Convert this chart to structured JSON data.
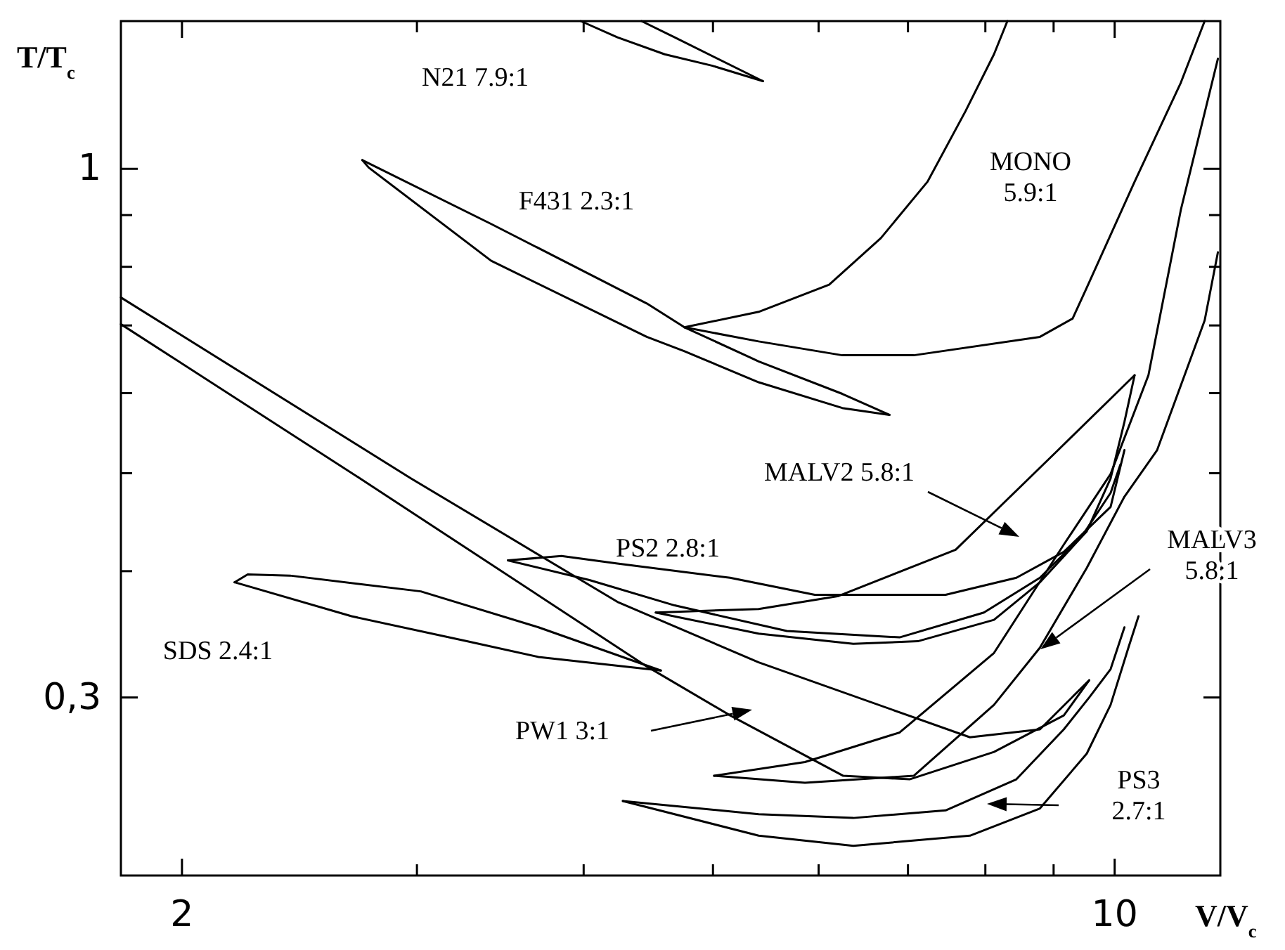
{
  "chart_data": {
    "type": "line",
    "xlabel": "V/V$_{c}$",
    "ylabel": "T/T$_{c}$",
    "log": "xy",
    "xlim": [
      1.8,
      12
    ],
    "ylim": [
      0.2,
      1.4
    ],
    "xticks": [
      2,
      {
        "value": 3,
        "label": null
      },
      {
        "value": 4,
        "label": null
      },
      {
        "value": 5,
        "label": null
      },
      {
        "value": 6,
        "label": null
      },
      {
        "value": 7,
        "label": null
      },
      {
        "value": 8,
        "label": null
      },
      {
        "value": 9,
        "label": null
      },
      10
    ],
    "yticks": [
      {
        "value": 0.3,
        "label": "0,3"
      },
      {
        "value": 0.4,
        "label": null
      },
      {
        "value": 0.5,
        "label": null
      },
      {
        "value": 0.6,
        "label": null
      },
      {
        "value": 0.7,
        "label": null
      },
      {
        "value": 0.8,
        "label": null
      },
      {
        "value": 0.9,
        "label": null
      },
      1
    ],
    "grid": false,
    "series": [
      {
        "color": "#000000",
        "x": [
          3.98,
          4.24,
          4.6,
          4.99,
          5.45
        ],
        "values": [
          1.4,
          1.349,
          1.298,
          1.265,
          1.221
        ]
      },
      {
        "color": "#000000",
        "x": [
          4.42,
          4.68,
          5.45
        ],
        "values": [
          1.4,
          1.349,
          1.221
        ]
      },
      {
        "color": "#000000",
        "x": [
          2.73,
          3.41,
          4.46,
          4.76,
          5.41,
          6.25,
          6.78
        ],
        "values": [
          1.02,
          0.882,
          0.736,
          0.697,
          0.645,
          0.599,
          0.571
        ]
      },
      {
        "color": "#000000",
        "x": [
          2.73,
          2.76,
          3.41,
          4.46,
          4.76,
          5.41,
          6.25,
          6.78
        ],
        "values": [
          1.02,
          1.003,
          0.811,
          0.682,
          0.66,
          0.615,
          0.58,
          0.571
        ]
      },
      {
        "color": "#000000",
        "x": [
          4.76,
          5.41,
          6.11,
          6.68,
          7.24,
          7.73,
          8.12,
          8.31
        ],
        "values": [
          0.697,
          0.722,
          0.768,
          0.854,
          0.971,
          1.14,
          1.298,
          1.4
        ]
      },
      {
        "color": "#000000",
        "x": [
          4.76,
          5.41,
          6.25,
          7.07,
          8.79,
          9.3,
          9.53,
          10.35,
          11.21,
          11.68
        ],
        "values": [
          0.697,
          0.675,
          0.654,
          0.654,
          0.682,
          0.711,
          0.763,
          0.971,
          1.217,
          1.4
        ]
      },
      {
        "color": "#000000",
        "x": [
          4.53,
          5.41,
          6.21,
          7.6,
          9.07,
          10.35
        ],
        "values": [
          0.364,
          0.367,
          0.378,
          0.42,
          0.527,
          0.625
        ]
      },
      {
        "color": "#000000",
        "x": [
          4.53,
          5.41,
          6.37,
          7.12,
          8.12,
          8.79,
          9.53,
          9.93,
          10.17,
          10.35
        ],
        "values": [
          0.364,
          0.347,
          0.339,
          0.341,
          0.358,
          0.39,
          0.438,
          0.494,
          0.562,
          0.625
        ]
      },
      {
        "color": "#000000",
        "x": [
          3.51,
          3.85,
          4.24,
          5.15,
          5.96,
          7.47,
          8.44,
          9.16,
          9.93,
          10.17
        ],
        "values": [
          0.41,
          0.414,
          0.407,
          0.394,
          0.379,
          0.379,
          0.394,
          0.418,
          0.463,
          0.527
        ]
      },
      {
        "color": "#000000",
        "x": [
          3.51,
          4.04,
          4.68,
          5.68,
          6.9,
          7.98,
          8.79,
          9.46,
          9.93,
          10.1
        ],
        "values": [
          0.41,
          0.392,
          0.37,
          0.349,
          0.344,
          0.364,
          0.394,
          0.434,
          0.478,
          0.51
        ]
      },
      {
        "color": "#000000",
        "x": [
          5.01,
          5.86,
          6.9,
          8.12,
          9.16,
          9.93,
          10.6,
          11.21,
          11.95
        ],
        "values": [
          0.251,
          0.259,
          0.277,
          0.332,
          0.425,
          0.499,
          0.625,
          0.911,
          1.285
        ]
      },
      {
        "color": "#000000",
        "x": [
          5.01,
          5.86,
          7.07,
          8.12,
          8.79,
          9.53,
          10.17,
          10.76,
          11.68,
          11.95
        ],
        "values": [
          0.251,
          0.247,
          0.251,
          0.295,
          0.336,
          0.403,
          0.474,
          0.527,
          0.708,
          0.827
        ]
      },
      {
        "color": "#000000",
        "x": [
          2.19,
          2.24,
          2.41,
          3.02,
          3.7,
          4.57
        ],
        "values": [
          0.39,
          0.397,
          0.396,
          0.382,
          0.352,
          0.319
        ]
      },
      {
        "color": "#000000",
        "x": [
          2.19,
          2.68,
          3.27,
          3.7,
          4.57
        ],
        "values": [
          0.39,
          0.361,
          0.341,
          0.329,
          0.319
        ]
      },
      {
        "color": "#000000",
        "x": [
          1.8,
          2.97,
          4.24,
          5.41,
          7.79,
          8.79,
          9.57
        ],
        "values": [
          0.746,
          0.494,
          0.373,
          0.325,
          0.274,
          0.279,
          0.312
        ]
      },
      {
        "color": "#000000",
        "x": [
          1.8,
          2.72,
          4.46,
          5.15,
          6.26,
          7.02,
          8.12,
          9.16,
          9.57
        ],
        "values": [
          0.702,
          0.494,
          0.322,
          0.288,
          0.251,
          0.249,
          0.265,
          0.288,
          0.312
        ]
      },
      {
        "color": "#000000",
        "x": [
          4.28,
          5.41,
          6.37,
          7.79,
          8.79,
          9.53,
          9.93,
          10.24,
          10.42
        ],
        "values": [
          0.237,
          0.219,
          0.214,
          0.219,
          0.233,
          0.264,
          0.295,
          0.336,
          0.361
        ]
      },
      {
        "color": "#000000",
        "x": [
          4.28,
          5.41,
          6.37,
          7.47,
          8.44,
          9.16,
          9.57,
          9.93,
          10.17
        ],
        "values": [
          0.237,
          0.23,
          0.228,
          0.232,
          0.249,
          0.279,
          0.3,
          0.32,
          0.352
        ]
      }
    ],
    "annotations": [
      "N21 7.9:1",
      "F431 2.3:1",
      "MONO\n5.9:1",
      "MALV2  5.8:1",
      "PS2 2.8:1",
      "MALV3\n5.8:1",
      "SDS 2.4:1",
      "PW1 3:1",
      "PS3\n2.7:1"
    ]
  }
}
